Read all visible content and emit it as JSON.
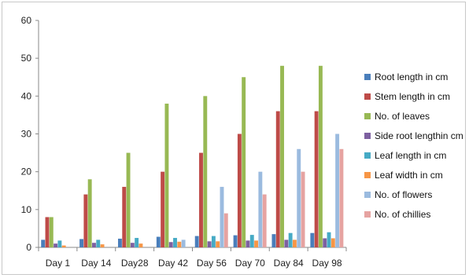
{
  "chart_data": {
    "type": "bar",
    "title": "",
    "xlabel": "",
    "ylabel": "",
    "ylim": [
      0,
      60
    ],
    "yticks": [
      0,
      10,
      20,
      30,
      40,
      50,
      60
    ],
    "grid": false,
    "legend_position": "right",
    "categories": [
      "Day 1",
      "Day 14",
      "Day28",
      "Day 42",
      "Day 56",
      "Day 70",
      "Day 84",
      "Day 98"
    ],
    "series": [
      {
        "name": "Root length in cm",
        "color": "#4a7ebb",
        "values": [
          2,
          2.2,
          2.3,
          2.8,
          3,
          3.2,
          3.5,
          3.8
        ]
      },
      {
        "name": "Stem length in cm",
        "color": "#be4b48",
        "values": [
          8,
          14,
          16,
          20,
          25,
          30,
          36,
          36
        ]
      },
      {
        "name": "No. of leaves",
        "color": "#98b954",
        "values": [
          8,
          18,
          25,
          38,
          40,
          45,
          48,
          48
        ]
      },
      {
        "name": "Side root lengthin cm",
        "color": "#7d60a0",
        "values": [
          1,
          1.2,
          1.2,
          1.4,
          1.6,
          1.8,
          2,
          2.4
        ]
      },
      {
        "name": "Leaf length in cm",
        "color": "#46aac5",
        "values": [
          1.8,
          2,
          2.5,
          2.5,
          3,
          3.3,
          3.8,
          4
        ]
      },
      {
        "name": "Leaf width in cm",
        "color": "#f79646",
        "values": [
          0.5,
          0.8,
          1,
          1.5,
          1.6,
          1.8,
          2,
          2.4
        ]
      },
      {
        "name": "No. of flowers",
        "color": "#9bbbdf",
        "values": [
          0,
          0,
          0,
          2,
          16,
          20,
          26,
          30
        ]
      },
      {
        "name": "No. of chillies",
        "color": "#e6a3a1",
        "values": [
          0,
          0,
          0,
          0,
          9,
          14,
          20,
          26
        ]
      }
    ]
  }
}
